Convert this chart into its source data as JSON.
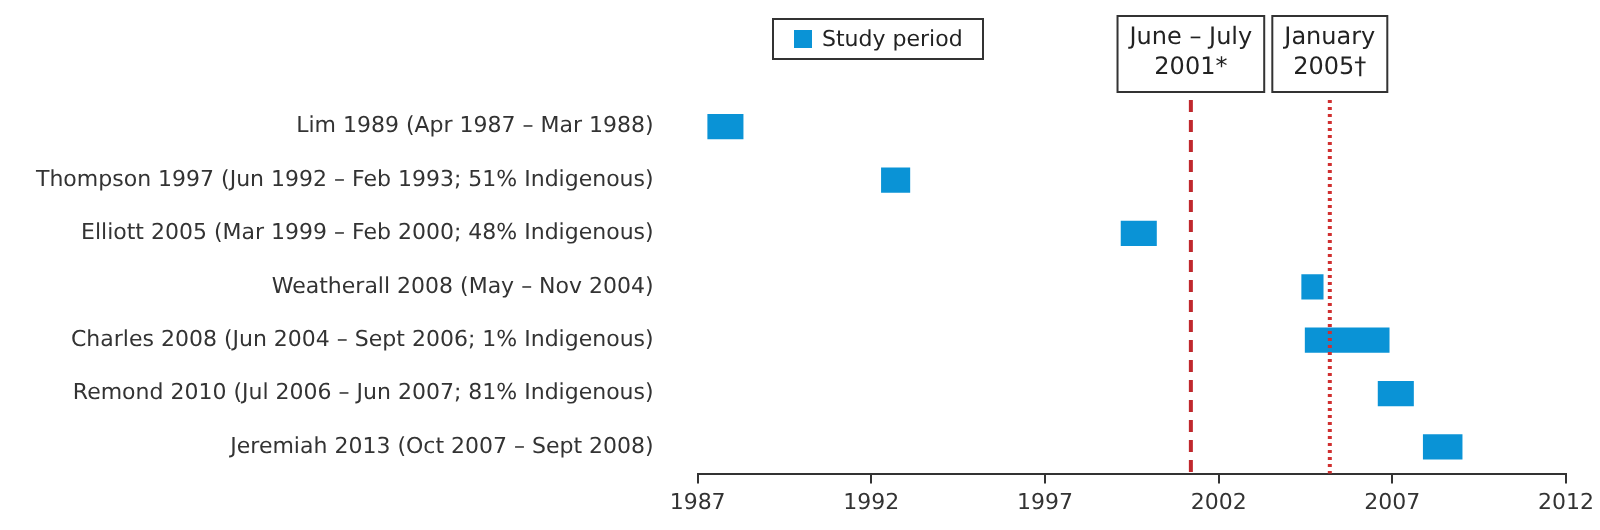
{
  "chart_data": {
    "type": "bar",
    "orientation": "horizontal",
    "categories": [
      "Lim 1989 (Apr 1987 – Mar 1988)",
      "Thompson 1997 (Jun 1992 – Feb 1993; 51% Indigenous)",
      "Elliott 2005 (Mar 1999 – Feb 2000; 48% Indigenous)",
      "Weatherall 2008 (May – Nov 2004)",
      "Charles 2008 (Jun 2004 – Sept 2006; 1% Indigenous)",
      "Remond 2010 (Jul 2006 – Jun 2007; 81% Indigenous)",
      "Jeremiah 2013 (Oct 2007 – Sept 2008)"
    ],
    "series": [
      {
        "name": "Study period",
        "color": "#0a93d6",
        "values": [
          1.0,
          0.8,
          1.0,
          0.6,
          2.4,
          1.0,
          1.1
        ],
        "base": [
          1987.3,
          1992.3,
          1999.2,
          2004.4,
          2004.5,
          2006.6,
          2007.9
        ]
      }
    ],
    "xlim": [
      1987,
      2012
    ],
    "xticks": [
      1987,
      1992,
      1997,
      2002,
      2007,
      2012
    ],
    "ref_lines": [
      {
        "axis": "x",
        "value": 2001.2,
        "label": "June – July\n2001*",
        "color": "#c0282d",
        "line_style": "dashed"
      },
      {
        "axis": "x",
        "value": 2005.2,
        "label": "January\n2005†",
        "color": "#d03030",
        "line_style": "dotted"
      }
    ],
    "grid": false,
    "legend": "top left"
  }
}
